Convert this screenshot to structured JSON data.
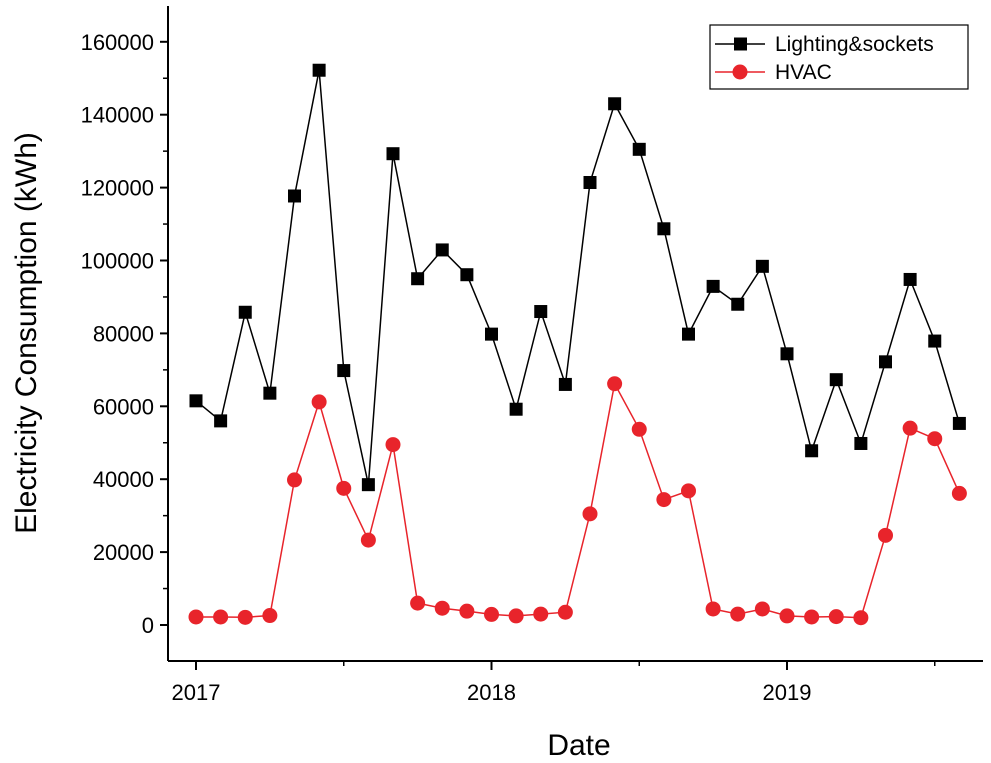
{
  "chart_data": {
    "type": "line",
    "xlabel": "Date",
    "ylabel": "Electricity Consumption (kWh)",
    "x_ticks": [
      "2017",
      "2018",
      "2019"
    ],
    "y_ticks": [
      "0",
      "20000",
      "40000",
      "60000",
      "80000",
      "100000",
      "120000",
      "140000",
      "160000"
    ],
    "xlim": [
      "2016-11",
      "2019-10"
    ],
    "ylim": [
      -10000,
      170000
    ],
    "grid": false,
    "legend_position": "top-right",
    "x": [
      "2017-01",
      "2017-02",
      "2017-03",
      "2017-04",
      "2017-05",
      "2017-06",
      "2017-07",
      "2017-08",
      "2017-09",
      "2017-10",
      "2017-11",
      "2017-12",
      "2018-01",
      "2018-02",
      "2018-03",
      "2018-04",
      "2018-05",
      "2018-06",
      "2018-07",
      "2018-08",
      "2018-09",
      "2018-10",
      "2018-11",
      "2018-12",
      "2019-01",
      "2019-02",
      "2019-03",
      "2019-04",
      "2019-05",
      "2019-06",
      "2019-07",
      "2019-08"
    ],
    "series": [
      {
        "name": "Lighting&sockets",
        "color": "#000000",
        "marker": "square",
        "values": [
          61500,
          56000,
          85800,
          63600,
          117700,
          152200,
          69800,
          38500,
          129300,
          95000,
          102900,
          96100,
          79800,
          59200,
          86000,
          66000,
          121400,
          143000,
          130500,
          108700,
          79800,
          92900,
          88000,
          98400,
          74400,
          47800,
          67300,
          49800,
          72200,
          94800,
          77900,
          55300
        ]
      },
      {
        "name": "HVAC",
        "color": "#e8242b",
        "marker": "circle",
        "values": [
          2200,
          2200,
          2100,
          2600,
          39800,
          61200,
          37500,
          23300,
          49500,
          6000,
          4600,
          3800,
          2900,
          2500,
          3000,
          3500,
          30500,
          66200,
          53700,
          34400,
          36800,
          4400,
          3000,
          4400,
          2500,
          2200,
          2300,
          2000,
          24600,
          54000,
          51100,
          36100
        ]
      }
    ]
  }
}
